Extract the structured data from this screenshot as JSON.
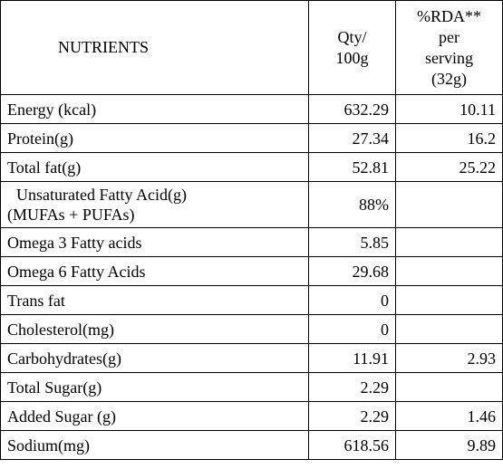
{
  "table": {
    "headers": {
      "nutrients": "NUTRIENTS",
      "qty_line1": "Qty/",
      "qty_line2": "100g",
      "rda_line1": "%RDA**",
      "rda_line2": "per",
      "rda_line3": "serving",
      "rda_line4": "(32g)"
    },
    "rows": [
      {
        "name": "Energy (kcal)",
        "qty": "632.29",
        "rda": "10.11"
      },
      {
        "name": "Protein(g)",
        "qty": "27.34",
        "rda": "16.2"
      },
      {
        "name": "Total fat(g)",
        "qty": "52.81",
        "rda": "25.22"
      },
      {
        "name_line1": "Unsaturated Fatty Acid(g)",
        "name_line2": "(MUFAs + PUFAs)",
        "qty": "88%",
        "rda": ""
      },
      {
        "name": "Omega 3 Fatty acids",
        "qty": "5.85",
        "rda": ""
      },
      {
        "name": "Omega 6 Fatty Acids",
        "qty": "29.68",
        "rda": ""
      },
      {
        "name": "Trans fat",
        "qty": "0",
        "rda": ""
      },
      {
        "name": "Cholesterol(mg)",
        "qty": "0",
        "rda": ""
      },
      {
        "name": "Carbohydrates(g)",
        "qty": "11.91",
        "rda": "2.93"
      },
      {
        "name": "Total Sugar(g)",
        "qty": "2.29",
        "rda": ""
      },
      {
        "name": "Added Sugar (g)",
        "qty": "2.29",
        "rda": "1.46"
      },
      {
        "name": "Sodium(mg)",
        "qty": "618.56",
        "rda": "9.89"
      }
    ]
  }
}
